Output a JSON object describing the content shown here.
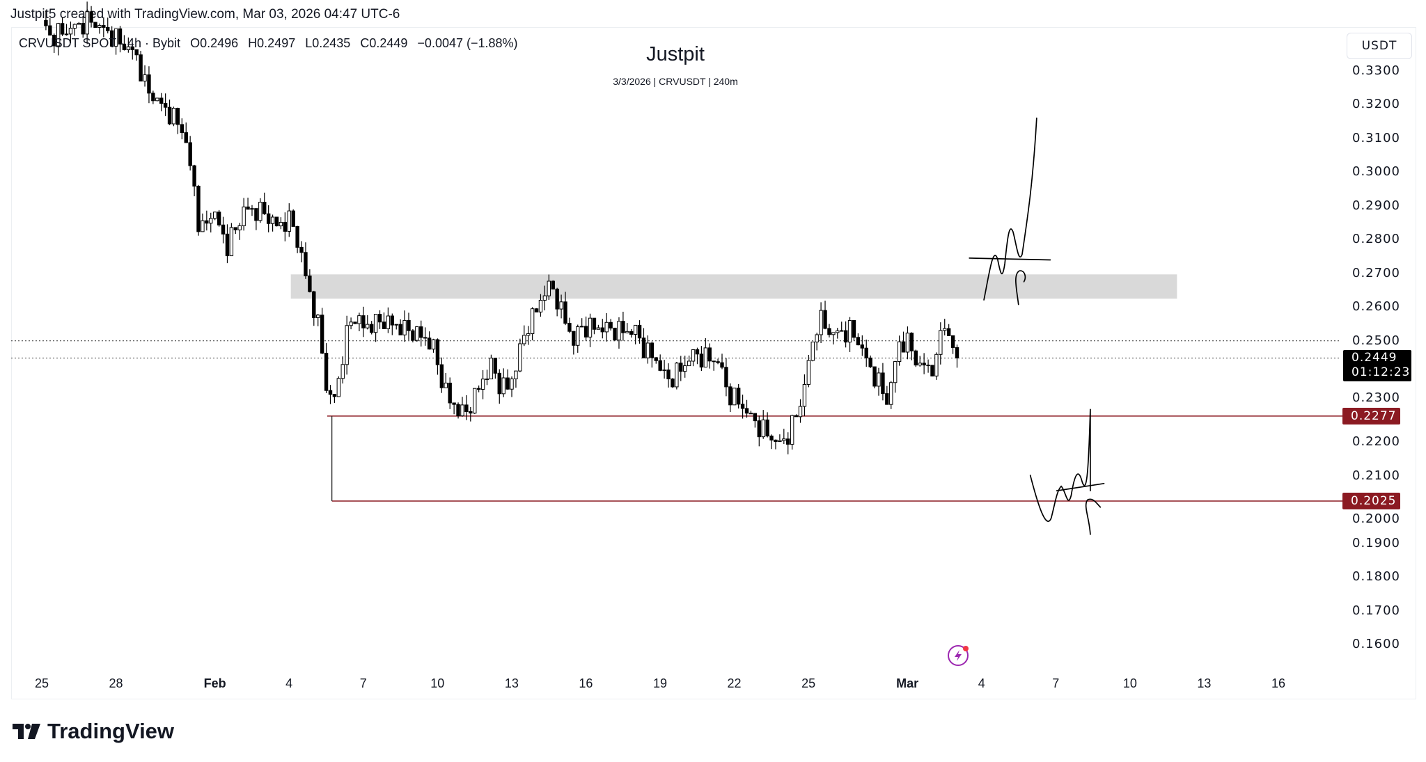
{
  "header": {
    "credit": "Justpit5 created with TradingView.com, Mar 03, 2026 04:47 UTC-6"
  },
  "legend": {
    "symbol": "CRVUSDT SPOT · 4h · Bybit",
    "open": "O0.2496",
    "high": "H0.2497",
    "low": "L0.2435",
    "close": "C0.2449",
    "change": "−0.0047 (−1.88%)"
  },
  "watermark": {
    "title": "Justpit",
    "subtitle": "3/3/2026 | CRVUSDT | 240m"
  },
  "footer": {
    "brand": "TradingView"
  },
  "chart_data": {
    "type": "candlestick",
    "currency": "USDT",
    "ylim": [
      0.155,
      0.338
    ],
    "yticks": [
      "0.3300",
      "0.3200",
      "0.3100",
      "0.3000",
      "0.2900",
      "0.2800",
      "0.2700",
      "0.2600",
      "0.2500",
      "0.2300",
      "0.2200",
      "0.2100",
      "0.2000",
      "0.1900",
      "0.1800",
      "0.1700",
      "0.1600"
    ],
    "xticks": [
      {
        "t": 0,
        "label": "25"
      },
      {
        "t": 3,
        "label": "28"
      },
      {
        "t": 7,
        "label": "Feb"
      },
      {
        "t": 10,
        "label": "4"
      },
      {
        "t": 13,
        "label": "7"
      },
      {
        "t": 16,
        "label": "10"
      },
      {
        "t": 19,
        "label": "13"
      },
      {
        "t": 22,
        "label": "16"
      },
      {
        "t": 25,
        "label": "19"
      },
      {
        "t": 28,
        "label": "22"
      },
      {
        "t": 31,
        "label": "25"
      },
      {
        "t": 35,
        "label": "Mar"
      },
      {
        "t": 38,
        "label": "4"
      },
      {
        "t": 41,
        "label": "7"
      },
      {
        "t": 44,
        "label": "10"
      },
      {
        "t": 47,
        "label": "13"
      },
      {
        "t": 50,
        "label": "16"
      }
    ],
    "time_unit": "days since Jan 25",
    "candle_interval_days": 0.1667,
    "close_path": [
      [
        0,
        0.345
      ],
      [
        0.33,
        0.34
      ],
      [
        2,
        0.345
      ],
      [
        3.8,
        0.335
      ],
      [
        4.2,
        0.325
      ],
      [
        4.7,
        0.321
      ],
      [
        5.7,
        0.313
      ],
      [
        6.2,
        0.294
      ],
      [
        6.4,
        0.281
      ],
      [
        6.9,
        0.289
      ],
      [
        7.5,
        0.278
      ],
      [
        8.2,
        0.289
      ],
      [
        9,
        0.288
      ],
      [
        9.5,
        0.284
      ],
      [
        10.1,
        0.286
      ],
      [
        10.4,
        0.278
      ],
      [
        10.8,
        0.265
      ],
      [
        11.2,
        0.254
      ],
      [
        11.4,
        0.243
      ],
      [
        11.6,
        0.232
      ],
      [
        11.9,
        0.234
      ],
      [
        12.3,
        0.251
      ],
      [
        12.6,
        0.258
      ],
      [
        13,
        0.254
      ],
      [
        13.8,
        0.256
      ],
      [
        14.5,
        0.254
      ],
      [
        15.2,
        0.252
      ],
      [
        15.8,
        0.249
      ],
      [
        16.1,
        0.24
      ],
      [
        16.5,
        0.232
      ],
      [
        17.1,
        0.228
      ],
      [
        17.4,
        0.232
      ],
      [
        17.8,
        0.238
      ],
      [
        18.2,
        0.243
      ],
      [
        18.5,
        0.237
      ],
      [
        18.9,
        0.236
      ],
      [
        19.3,
        0.246
      ],
      [
        19.6,
        0.254
      ],
      [
        20,
        0.259
      ],
      [
        20.4,
        0.266
      ],
      [
        20.7,
        0.265
      ],
      [
        21.1,
        0.257
      ],
      [
        21.5,
        0.25
      ],
      [
        21.8,
        0.254
      ],
      [
        22.6,
        0.254
      ],
      [
        23.3,
        0.253
      ],
      [
        24,
        0.253
      ],
      [
        24.4,
        0.247
      ],
      [
        24.8,
        0.245
      ],
      [
        25.3,
        0.238
      ],
      [
        25.9,
        0.242
      ],
      [
        26.3,
        0.246
      ],
      [
        26.8,
        0.245
      ],
      [
        27.4,
        0.244
      ],
      [
        27.7,
        0.235
      ],
      [
        28.3,
        0.231
      ],
      [
        28.8,
        0.226
      ],
      [
        29.4,
        0.222
      ],
      [
        29.9,
        0.219
      ],
      [
        30.3,
        0.224
      ],
      [
        30.7,
        0.232
      ],
      [
        31,
        0.243
      ],
      [
        31.4,
        0.257
      ],
      [
        31.8,
        0.253
      ],
      [
        32.1,
        0.252
      ],
      [
        32.7,
        0.253
      ],
      [
        33.1,
        0.249
      ],
      [
        33.4,
        0.243
      ],
      [
        33.8,
        0.238
      ],
      [
        34.2,
        0.232
      ],
      [
        34.5,
        0.243
      ],
      [
        34.7,
        0.25
      ],
      [
        35.1,
        0.249
      ],
      [
        35.4,
        0.243
      ],
      [
        35.8,
        0.242
      ],
      [
        36.2,
        0.243
      ],
      [
        36.4,
        0.258
      ],
      [
        36.7,
        0.25
      ],
      [
        37,
        0.2449
      ]
    ],
    "zone": {
      "t_start": 10.07,
      "t_end": 45.9,
      "low": 0.2625,
      "high": 0.2697,
      "color": "#d9d9d9"
    },
    "hlines": [
      {
        "price": 0.2277,
        "t_start": 11.54,
        "label": "0.2277",
        "color": "#8b1a22"
      },
      {
        "price": 0.2025,
        "t_start": 11.73,
        "label": "0.2025",
        "color": "#8b1a22"
      }
    ],
    "dotted_lines": [
      0.25,
      0.2449
    ],
    "last_price": {
      "label": "0.2449",
      "countdown": "01:12:23"
    },
    "colors": {
      "up": "#ffffff",
      "down": "#000000",
      "outline": "#000000"
    }
  }
}
